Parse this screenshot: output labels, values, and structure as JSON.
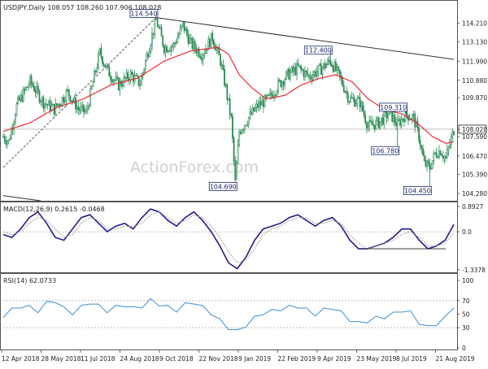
{
  "colors": {
    "candle": "#2e8b57",
    "ma": "#ee1c25",
    "macd": "#1f1d8c",
    "signal": "#9a9a9a",
    "rsi": "#3d8fd4",
    "trend": "#333333",
    "price_label_bg": "#ffffff",
    "watermark": "#d3d3d3"
  },
  "chart_data": [
    {
      "type": "candlestick",
      "title": "USDJPY,Daily",
      "ohlc_readout": "108.057 108.260 107.906 108.028",
      "watermark": "ActionForex.com",
      "current_price": "108.028",
      "grid": false,
      "ylim": [
        103.9,
        114.9
      ],
      "y_ticks": [
        "114.210",
        "113.130",
        "111.990",
        "110.880",
        "109.870",
        "108.028",
        "107.590",
        "106.470",
        "105.390",
        "104.280"
      ],
      "x_ticks": [
        "12 Apr 2018",
        "28 May 2018",
        "11 Jul 2018",
        "24 Aug 2018",
        "9 Oct 2018",
        "22 Nov 2018",
        "9 Jan 2019",
        "22 Feb 2019",
        "9 Apr 2019",
        "23 May 2019",
        "8 Jul 2019",
        "21 Aug 2019"
      ],
      "anchors": [
        {
          "x": 0,
          "y": 107.6
        },
        {
          "x": 4,
          "y": 107.3
        },
        {
          "x": 10,
          "y": 109.4
        },
        {
          "x": 20,
          "y": 110.8
        },
        {
          "x": 30,
          "y": 109.6
        },
        {
          "x": 38,
          "y": 109.2
        },
        {
          "x": 48,
          "y": 110.2
        },
        {
          "x": 56,
          "y": 109.2
        },
        {
          "x": 62,
          "y": 109.0
        },
        {
          "x": 72,
          "y": 112.5
        },
        {
          "x": 78,
          "y": 111.4
        },
        {
          "x": 86,
          "y": 110.6
        },
        {
          "x": 95,
          "y": 111.2
        },
        {
          "x": 102,
          "y": 110.7
        },
        {
          "x": 108,
          "y": 112.6
        },
        {
          "x": 114,
          "y": 114.4
        },
        {
          "x": 120,
          "y": 112.8
        },
        {
          "x": 127,
          "y": 112.9
        },
        {
          "x": 134,
          "y": 114.1
        },
        {
          "x": 140,
          "y": 113.0
        },
        {
          "x": 148,
          "y": 112.4
        },
        {
          "x": 156,
          "y": 113.4
        },
        {
          "x": 162,
          "y": 112.0
        },
        {
          "x": 166,
          "y": 110.4
        },
        {
          "x": 170,
          "y": 108.6
        },
        {
          "x": 173,
          "y": 104.9
        },
        {
          "x": 176,
          "y": 107.9
        },
        {
          "x": 182,
          "y": 108.6
        },
        {
          "x": 190,
          "y": 109.4
        },
        {
          "x": 198,
          "y": 109.8
        },
        {
          "x": 205,
          "y": 110.6
        },
        {
          "x": 212,
          "y": 111.2
        },
        {
          "x": 220,
          "y": 111.6
        },
        {
          "x": 228,
          "y": 111.1
        },
        {
          "x": 236,
          "y": 111.5
        },
        {
          "x": 244,
          "y": 112.0
        },
        {
          "x": 250,
          "y": 111.2
        },
        {
          "x": 258,
          "y": 109.8
        },
        {
          "x": 266,
          "y": 109.6
        },
        {
          "x": 272,
          "y": 108.2
        },
        {
          "x": 280,
          "y": 108.4
        },
        {
          "x": 288,
          "y": 109.0
        },
        {
          "x": 294,
          "y": 108.3
        },
        {
          "x": 300,
          "y": 108.9
        },
        {
          "x": 306,
          "y": 108.7
        },
        {
          "x": 310,
          "y": 107.6
        },
        {
          "x": 314,
          "y": 106.0
        },
        {
          "x": 318,
          "y": 105.8
        },
        {
          "x": 322,
          "y": 106.6
        },
        {
          "x": 326,
          "y": 106.8
        },
        {
          "x": 330,
          "y": 106.3
        },
        {
          "x": 336,
          "y": 108.0
        }
      ],
      "ma_anchors": [
        {
          "x": 0,
          "y": 107.9
        },
        {
          "x": 20,
          "y": 108.4
        },
        {
          "x": 40,
          "y": 109.3
        },
        {
          "x": 60,
          "y": 109.8
        },
        {
          "x": 80,
          "y": 110.6
        },
        {
          "x": 100,
          "y": 111.0
        },
        {
          "x": 120,
          "y": 112.0
        },
        {
          "x": 140,
          "y": 112.6
        },
        {
          "x": 160,
          "y": 112.8
        },
        {
          "x": 168,
          "y": 112.4
        },
        {
          "x": 176,
          "y": 111.2
        },
        {
          "x": 186,
          "y": 110.4
        },
        {
          "x": 196,
          "y": 109.8
        },
        {
          "x": 210,
          "y": 110.0
        },
        {
          "x": 222,
          "y": 110.6
        },
        {
          "x": 236,
          "y": 111.0
        },
        {
          "x": 248,
          "y": 111.2
        },
        {
          "x": 260,
          "y": 110.8
        },
        {
          "x": 272,
          "y": 109.8
        },
        {
          "x": 284,
          "y": 109.2
        },
        {
          "x": 298,
          "y": 108.9
        },
        {
          "x": 310,
          "y": 108.3
        },
        {
          "x": 320,
          "y": 107.6
        },
        {
          "x": 330,
          "y": 107.2
        },
        {
          "x": 336,
          "y": 107.3
        }
      ],
      "annotations": [
        {
          "text": "114.540",
          "bar": 114,
          "price": 114.54,
          "side": "left"
        },
        {
          "text": "104.690",
          "bar": 173,
          "price": 104.69,
          "side": "left"
        },
        {
          "text": "112.400",
          "bar": 244,
          "price": 112.4,
          "side": "left"
        },
        {
          "text": "109.310",
          "bar": 300,
          "price": 109.31,
          "side": "left"
        },
        {
          "text": "106.780",
          "bar": 294,
          "price": 106.78,
          "side": "left"
        },
        {
          "text": "104.450",
          "bar": 318,
          "price": 104.45,
          "side": "left"
        }
      ]
    },
    {
      "type": "line",
      "title": "MACD(12,26,9) 0.2615 -0.0468",
      "ylim": [
        -1.4,
        0.95
      ],
      "y_ticks": [
        "0.8927",
        "0.0",
        "-1.3378"
      ],
      "series": [
        {
          "name": "MACD",
          "values": [
            -0.1,
            -0.2,
            0.1,
            0.5,
            0.7,
            0.3,
            -0.2,
            -0.3,
            0.1,
            0.5,
            0.6,
            0.3,
            0.0,
            0.2,
            0.3,
            0.1,
            0.5,
            0.8,
            0.7,
            0.4,
            0.2,
            0.5,
            0.7,
            0.4,
            0.0,
            -0.5,
            -1.1,
            -1.3,
            -0.9,
            -0.3,
            0.1,
            0.2,
            0.3,
            0.5,
            0.6,
            0.4,
            0.2,
            0.4,
            0.5,
            0.2,
            -0.3,
            -0.6,
            -0.6,
            -0.5,
            -0.4,
            -0.2,
            0.1,
            0.1,
            -0.3,
            -0.6,
            -0.5,
            -0.3,
            0.26
          ]
        },
        {
          "name": "Signal",
          "values": [
            0.0,
            -0.1,
            0.0,
            0.3,
            0.5,
            0.4,
            0.1,
            -0.2,
            -0.1,
            0.3,
            0.5,
            0.4,
            0.1,
            0.1,
            0.2,
            0.2,
            0.3,
            0.6,
            0.7,
            0.5,
            0.3,
            0.4,
            0.6,
            0.5,
            0.2,
            -0.2,
            -0.7,
            -1.1,
            -1.0,
            -0.6,
            -0.1,
            0.1,
            0.2,
            0.4,
            0.5,
            0.5,
            0.3,
            0.3,
            0.4,
            0.3,
            -0.1,
            -0.4,
            -0.6,
            -0.5,
            -0.4,
            -0.3,
            -0.1,
            0.0,
            -0.2,
            -0.5,
            -0.5,
            -0.4,
            -0.05
          ]
        }
      ]
    },
    {
      "type": "line",
      "title": "RSI(14) 62.0733",
      "ylim": [
        0,
        100
      ],
      "y_ticks": [
        "100",
        "70",
        "50",
        "30",
        "0"
      ],
      "series": [
        {
          "name": "RSI",
          "values": [
            48,
            56,
            62,
            60,
            55,
            66,
            70,
            58,
            52,
            60,
            68,
            62,
            55,
            60,
            64,
            58,
            62,
            70,
            65,
            60,
            56,
            64,
            68,
            60,
            52,
            40,
            30,
            24,
            34,
            44,
            52,
            54,
            58,
            60,
            62,
            56,
            50,
            56,
            60,
            52,
            42,
            36,
            40,
            44,
            46,
            50,
            56,
            52,
            38,
            30,
            36,
            44,
            62
          ]
        }
      ]
    }
  ]
}
